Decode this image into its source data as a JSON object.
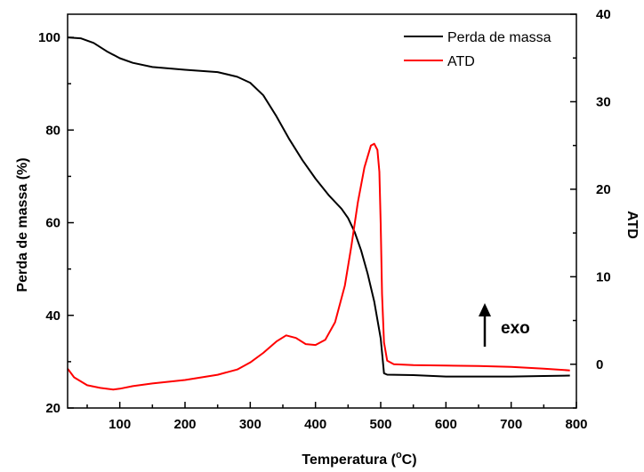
{
  "chart_data": {
    "type": "line",
    "xlabel": "Temperatura (°C)",
    "xlabel_main": "Temperatura (",
    "xlabel_sup": "o",
    "xlabel_end": "C)",
    "ylabel_left": "Perda de massa (%)",
    "ylabel_right": "ATD",
    "xlim": [
      20,
      800
    ],
    "ylim_left": [
      20,
      105
    ],
    "ylim_right": [
      -5,
      40
    ],
    "x_ticks": [
      100,
      200,
      300,
      400,
      500,
      600,
      700,
      800
    ],
    "y_left_ticks": [
      20,
      40,
      60,
      80,
      100
    ],
    "y_right_ticks": [
      0,
      10,
      20,
      30,
      40
    ],
    "legend_position": "top-right",
    "annotation": "exo",
    "series": [
      {
        "name": "Perda de massa",
        "axis": "left",
        "color": "#000000",
        "x": [
          20,
          40,
          60,
          80,
          100,
          120,
          150,
          200,
          250,
          280,
          300,
          320,
          340,
          360,
          380,
          400,
          420,
          440,
          450,
          460,
          470,
          480,
          490,
          500,
          505,
          510,
          550,
          600,
          650,
          700,
          750,
          790
        ],
        "y": [
          100,
          99.8,
          98.8,
          97,
          95.5,
          94.5,
          93.6,
          93,
          92.5,
          91.5,
          90.2,
          87.5,
          83,
          78,
          73.5,
          69.5,
          66,
          63,
          61,
          58,
          54,
          49,
          43,
          35,
          27.5,
          27.2,
          27.1,
          26.8,
          26.8,
          26.8,
          26.9,
          27
        ]
      },
      {
        "name": "ATD",
        "axis": "right",
        "color": "#ff0000",
        "x": [
          20,
          30,
          50,
          70,
          90,
          100,
          120,
          150,
          200,
          250,
          280,
          300,
          320,
          340,
          355,
          370,
          385,
          400,
          415,
          430,
          445,
          455,
          465,
          475,
          485,
          490,
          495,
          498,
          500,
          502,
          505,
          510,
          520,
          550,
          600,
          650,
          700,
          750,
          790
        ],
        "y": [
          -0.5,
          -1.5,
          -2.4,
          -2.7,
          -2.9,
          -2.8,
          -2.5,
          -2.2,
          -1.8,
          -1.2,
          -0.6,
          0.2,
          1.3,
          2.6,
          3.3,
          3.0,
          2.3,
          2.2,
          2.8,
          4.8,
          9.0,
          13.5,
          18.5,
          22.5,
          25,
          25.2,
          24.5,
          22,
          16,
          8,
          2.5,
          0.4,
          0,
          -0.1,
          -0.15,
          -0.2,
          -0.3,
          -0.5,
          -0.7
        ]
      }
    ]
  }
}
